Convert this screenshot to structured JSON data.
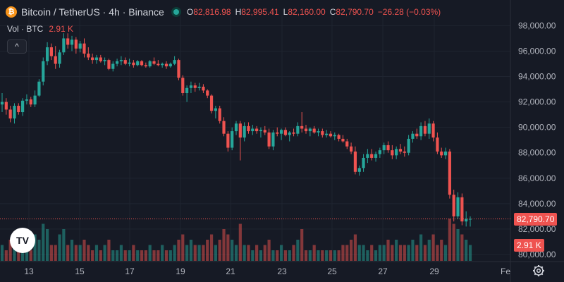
{
  "header": {
    "title": "Bitcoin / TetherUS · 4h · Binance",
    "coin_icon_glyph": "₿",
    "ohlc": {
      "o_label": "O",
      "o_value": "82,816.98",
      "h_label": "H",
      "h_value": "82,995.41",
      "l_label": "L",
      "l_value": "82,160.00",
      "c_label": "C",
      "c_value": "82,790.70",
      "change": "−26.28 (−0.03%)"
    }
  },
  "volume_legend": {
    "label": "Vol · BTC",
    "value": "2.91 K"
  },
  "collapse_button": {
    "glyph": "^"
  },
  "logo": {
    "text": "TV"
  },
  "price_axis": {
    "ticks": [
      "98,000.00",
      "96,000.00",
      "94,000.00",
      "92,000.00",
      "90,000.00",
      "88,000.00",
      "86,000.00",
      "84,000.00",
      "82,000.00",
      "80,000.00"
    ],
    "last_price_tag": "82,790.70",
    "volume_tag": "2.91 K"
  },
  "time_axis": {
    "ticks": [
      "13",
      "15",
      "17",
      "19",
      "21",
      "23",
      "25",
      "27",
      "29",
      "Fe"
    ]
  },
  "colors": {
    "up": "#26a69a",
    "down": "#ef5350",
    "background": "#161a25",
    "grid": "#1f2430"
  },
  "chart_data": {
    "type": "candlestick",
    "y_axis_range": [
      79500,
      98800
    ],
    "x_axis_range": [
      "Jan 12",
      "Feb"
    ],
    "interval": "4h",
    "series_hint": "approximate OHLC read off the chart; close values in USDT",
    "candles": [
      [
        91800,
        92700,
        91200,
        92000
      ],
      [
        92000,
        92300,
        91000,
        91400
      ],
      [
        91400,
        91700,
        90400,
        90700
      ],
      [
        90700,
        91900,
        90300,
        91700
      ],
      [
        91700,
        91900,
        91000,
        91200
      ],
      [
        91200,
        92300,
        90900,
        92100
      ],
      [
        92100,
        92600,
        91800,
        92200
      ],
      [
        92200,
        92400,
        91600,
        91800
      ],
      [
        91800,
        92900,
        91600,
        92500
      ],
      [
        92500,
        93800,
        92400,
        93600
      ],
      [
        93600,
        95500,
        93300,
        95200
      ],
      [
        95200,
        96700,
        94900,
        96300
      ],
      [
        96300,
        96600,
        95300,
        95600
      ],
      [
        95600,
        96400,
        94600,
        95000
      ],
      [
        95000,
        96100,
        94700,
        95900
      ],
      [
        95900,
        97400,
        95700,
        97000
      ],
      [
        97000,
        97400,
        96200,
        96500
      ],
      [
        96500,
        97200,
        96000,
        96900
      ],
      [
        96900,
        97100,
        95800,
        96200
      ],
      [
        96200,
        96800,
        95900,
        96600
      ],
      [
        96600,
        97000,
        95500,
        95800
      ],
      [
        95800,
        96300,
        95300,
        95500
      ],
      [
        95500,
        95800,
        95000,
        95300
      ],
      [
        95300,
        95700,
        95000,
        95500
      ],
      [
        95500,
        95700,
        95100,
        95200
      ],
      [
        95200,
        95500,
        94900,
        95300
      ],
      [
        95300,
        95400,
        94500,
        94600
      ],
      [
        94600,
        95200,
        94400,
        95000
      ],
      [
        95000,
        95400,
        94800,
        95200
      ],
      [
        95200,
        95600,
        94900,
        95300
      ],
      [
        95300,
        95500,
        94900,
        95000
      ],
      [
        95000,
        95400,
        94800,
        95100
      ],
      [
        95100,
        95300,
        94700,
        94900
      ],
      [
        94900,
        95300,
        94800,
        95200
      ],
      [
        95200,
        95300,
        94800,
        94900
      ],
      [
        94900,
        95100,
        94700,
        94800
      ],
      [
        94800,
        95300,
        94700,
        95200
      ],
      [
        95200,
        95500,
        94900,
        95000
      ],
      [
        95000,
        95300,
        94800,
        94900
      ],
      [
        94900,
        95100,
        94700,
        95000
      ],
      [
        95000,
        95200,
        94600,
        94800
      ],
      [
        94800,
        95100,
        94700,
        95000
      ],
      [
        95000,
        95600,
        94900,
        95300
      ],
      [
        95300,
        95400,
        93700,
        93900
      ],
      [
        93900,
        94100,
        92500,
        92700
      ],
      [
        92700,
        93300,
        92000,
        93100
      ],
      [
        93100,
        93600,
        92700,
        93300
      ],
      [
        93300,
        93500,
        92800,
        93100
      ],
      [
        93100,
        93500,
        92900,
        93200
      ],
      [
        93200,
        93400,
        92700,
        92900
      ],
      [
        92900,
        93000,
        92300,
        92500
      ],
      [
        92500,
        92600,
        91100,
        91300
      ],
      [
        91300,
        91700,
        90700,
        91500
      ],
      [
        91500,
        91700,
        90300,
        90500
      ],
      [
        90500,
        90800,
        89300,
        89500
      ],
      [
        89500,
        89700,
        88100,
        88400
      ],
      [
        88400,
        90000,
        88200,
        89700
      ],
      [
        89700,
        90500,
        89400,
        90300
      ],
      [
        90300,
        90500,
        87400,
        89200
      ],
      [
        89200,
        90400,
        88900,
        90100
      ],
      [
        90100,
        90400,
        89500,
        89700
      ],
      [
        89700,
        90200,
        89400,
        89900
      ],
      [
        89900,
        90100,
        89500,
        89700
      ],
      [
        89700,
        90000,
        89200,
        89800
      ],
      [
        89800,
        90100,
        89400,
        89600
      ],
      [
        89600,
        89900,
        88300,
        88500
      ],
      [
        88500,
        89800,
        88200,
        89600
      ],
      [
        89600,
        90000,
        89300,
        89500
      ],
      [
        89500,
        89900,
        89000,
        89800
      ],
      [
        89800,
        90000,
        89300,
        89400
      ],
      [
        89400,
        89700,
        88900,
        89600
      ],
      [
        89600,
        89900,
        89300,
        89500
      ],
      [
        89500,
        90400,
        89300,
        90100
      ],
      [
        90100,
        91200,
        89600,
        89900
      ],
      [
        89900,
        90200,
        89500,
        89700
      ],
      [
        89700,
        90000,
        89300,
        89900
      ],
      [
        89900,
        90100,
        89500,
        89600
      ],
      [
        89600,
        89900,
        89300,
        89700
      ],
      [
        89700,
        89900,
        89200,
        89400
      ],
      [
        89400,
        89800,
        89200,
        89500
      ],
      [
        89500,
        89700,
        89200,
        89300
      ],
      [
        89300,
        89600,
        89000,
        89400
      ],
      [
        89400,
        89500,
        88900,
        89100
      ],
      [
        89100,
        89400,
        88800,
        88900
      ],
      [
        88900,
        89100,
        88300,
        88500
      ],
      [
        88500,
        88800,
        87900,
        88100
      ],
      [
        88100,
        88500,
        86300,
        86500
      ],
      [
        86500,
        87000,
        86200,
        86800
      ],
      [
        86800,
        87900,
        86500,
        87600
      ],
      [
        87600,
        88300,
        87200,
        87900
      ],
      [
        87900,
        88300,
        87400,
        87600
      ],
      [
        87600,
        88100,
        87300,
        87900
      ],
      [
        87900,
        88400,
        87600,
        88200
      ],
      [
        88200,
        88800,
        87900,
        88600
      ],
      [
        88600,
        88900,
        88000,
        88200
      ],
      [
        88200,
        88600,
        87500,
        87800
      ],
      [
        87800,
        88500,
        87500,
        88300
      ],
      [
        88300,
        88700,
        87900,
        88100
      ],
      [
        88100,
        88500,
        87700,
        88000
      ],
      [
        88000,
        89400,
        87800,
        89100
      ],
      [
        89100,
        89700,
        88800,
        89500
      ],
      [
        89500,
        89900,
        89100,
        89300
      ],
      [
        89300,
        90400,
        89000,
        90100
      ],
      [
        90100,
        90500,
        89300,
        89500
      ],
      [
        89500,
        90700,
        89100,
        90300
      ],
      [
        90300,
        90500,
        88900,
        89200
      ],
      [
        89200,
        89600,
        87900,
        88100
      ],
      [
        88100,
        88400,
        87600,
        87800
      ],
      [
        87800,
        88400,
        87500,
        88100
      ],
      [
        88100,
        88300,
        84400,
        84700
      ],
      [
        84700,
        85100,
        82600,
        83000
      ],
      [
        83000,
        84900,
        82800,
        84500
      ],
      [
        84500,
        84800,
        82300,
        82600
      ],
      [
        82600,
        83400,
        82200,
        82800
      ],
      [
        82800,
        83000,
        82200,
        82800
      ]
    ],
    "volumes": [
      3,
      2,
      4,
      3,
      2,
      4,
      3,
      2,
      5,
      4,
      7,
      6,
      3,
      3,
      5,
      6,
      3,
      4,
      3,
      3,
      4,
      3,
      2,
      3,
      2,
      3,
      4,
      2,
      2,
      3,
      2,
      2,
      3,
      2,
      2,
      2,
      3,
      2,
      2,
      3,
      2,
      2,
      3,
      4,
      5,
      3,
      4,
      3,
      3,
      3,
      4,
      5,
      3,
      4,
      6,
      5,
      4,
      3,
      7,
      3,
      3,
      2,
      3,
      2,
      3,
      4,
      2,
      2,
      3,
      2,
      2,
      3,
      4,
      6,
      2,
      2,
      3,
      2,
      2,
      2,
      2,
      2,
      2,
      3,
      3,
      4,
      5,
      3,
      3,
      2,
      3,
      2,
      3,
      3,
      4,
      3,
      4,
      3,
      3,
      3,
      4,
      3,
      5,
      3,
      4,
      5,
      3,
      4,
      3,
      8,
      7,
      6,
      5,
      4,
      3
    ]
  }
}
